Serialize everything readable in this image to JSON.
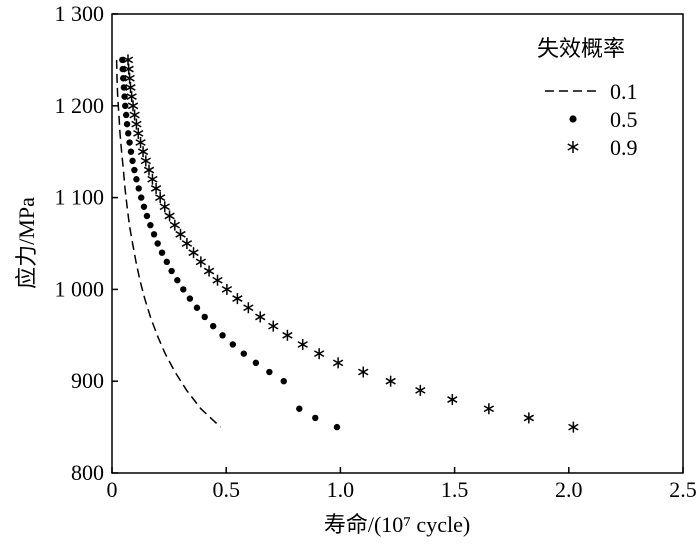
{
  "chart_data": {
    "type": "scatter",
    "xlabel": "寿命/(10⁷ cycle)",
    "ylabel": "应力/MPa",
    "xlim": [
      0,
      2.5
    ],
    "ylim": [
      800,
      1300
    ],
    "xticks": [
      0,
      0.5,
      1.0,
      1.5,
      2.0,
      2.5
    ],
    "xtick_labels": [
      "0",
      "0.5",
      "1.0",
      "1.5",
      "2.0",
      "2.5"
    ],
    "yticks": [
      800,
      900,
      1000,
      1100,
      1200,
      1300
    ],
    "ytick_labels": [
      "800",
      "900",
      "1 000",
      "1 100",
      "1 200",
      "1 300"
    ],
    "grid": false,
    "legend": {
      "title": "失效概率",
      "position": "top-right"
    },
    "series": [
      {
        "name": "0.1",
        "style": "dashed-line",
        "color": "#000000",
        "points": [
          [
            0.02,
            1250
          ],
          [
            0.022,
            1230
          ],
          [
            0.025,
            1210
          ],
          [
            0.03,
            1190
          ],
          [
            0.035,
            1170
          ],
          [
            0.042,
            1150
          ],
          [
            0.05,
            1130
          ],
          [
            0.057,
            1110
          ],
          [
            0.066,
            1090
          ],
          [
            0.076,
            1070
          ],
          [
            0.09,
            1050
          ],
          [
            0.105,
            1030
          ],
          [
            0.122,
            1010
          ],
          [
            0.143,
            990
          ],
          [
            0.168,
            970
          ],
          [
            0.198,
            950
          ],
          [
            0.233,
            930
          ],
          [
            0.276,
            910
          ],
          [
            0.327,
            890
          ],
          [
            0.389,
            870
          ],
          [
            0.475,
            850
          ]
        ]
      },
      {
        "name": "0.5",
        "style": "dot",
        "color": "#000000",
        "points": [
          [
            0.045,
            1250
          ],
          [
            0.047,
            1240
          ],
          [
            0.049,
            1230
          ],
          [
            0.052,
            1220
          ],
          [
            0.055,
            1210
          ],
          [
            0.058,
            1200
          ],
          [
            0.062,
            1190
          ],
          [
            0.066,
            1180
          ],
          [
            0.071,
            1170
          ],
          [
            0.077,
            1160
          ],
          [
            0.083,
            1150
          ],
          [
            0.09,
            1140
          ],
          [
            0.098,
            1130
          ],
          [
            0.107,
            1120
          ],
          [
            0.117,
            1110
          ],
          [
            0.128,
            1100
          ],
          [
            0.14,
            1090
          ],
          [
            0.153,
            1080
          ],
          [
            0.168,
            1070
          ],
          [
            0.184,
            1060
          ],
          [
            0.2,
            1050
          ],
          [
            0.219,
            1040
          ],
          [
            0.24,
            1030
          ],
          [
            0.261,
            1020
          ],
          [
            0.286,
            1010
          ],
          [
            0.312,
            1000
          ],
          [
            0.341,
            990
          ],
          [
            0.372,
            980
          ],
          [
            0.406,
            970
          ],
          [
            0.443,
            960
          ],
          [
            0.484,
            950
          ],
          [
            0.529,
            940
          ],
          [
            0.577,
            930
          ],
          [
            0.63,
            920
          ],
          [
            0.689,
            910
          ],
          [
            0.752,
            900
          ],
          [
            0.82,
            870
          ],
          [
            0.89,
            860
          ],
          [
            0.985,
            850
          ]
        ]
      },
      {
        "name": "0.9",
        "style": "asterisk",
        "color": "#000000",
        "points": [
          [
            0.07,
            1250
          ],
          [
            0.073,
            1240
          ],
          [
            0.077,
            1230
          ],
          [
            0.081,
            1220
          ],
          [
            0.086,
            1210
          ],
          [
            0.092,
            1200
          ],
          [
            0.099,
            1190
          ],
          [
            0.107,
            1180
          ],
          [
            0.115,
            1170
          ],
          [
            0.125,
            1160
          ],
          [
            0.136,
            1150
          ],
          [
            0.148,
            1140
          ],
          [
            0.162,
            1130
          ],
          [
            0.177,
            1120
          ],
          [
            0.193,
            1110
          ],
          [
            0.211,
            1100
          ],
          [
            0.231,
            1090
          ],
          [
            0.252,
            1080
          ],
          [
            0.275,
            1070
          ],
          [
            0.3,
            1060
          ],
          [
            0.328,
            1050
          ],
          [
            0.357,
            1040
          ],
          [
            0.389,
            1030
          ],
          [
            0.425,
            1020
          ],
          [
            0.462,
            1010
          ],
          [
            0.503,
            1000
          ],
          [
            0.549,
            990
          ],
          [
            0.597,
            980
          ],
          [
            0.649,
            970
          ],
          [
            0.706,
            960
          ],
          [
            0.768,
            950
          ],
          [
            0.835,
            940
          ],
          [
            0.907,
            930
          ],
          [
            0.99,
            920
          ],
          [
            1.1,
            910
          ],
          [
            1.22,
            900
          ],
          [
            1.35,
            890
          ],
          [
            1.49,
            880
          ],
          [
            1.65,
            870
          ],
          [
            1.825,
            860
          ],
          [
            2.02,
            850
          ]
        ]
      }
    ]
  }
}
